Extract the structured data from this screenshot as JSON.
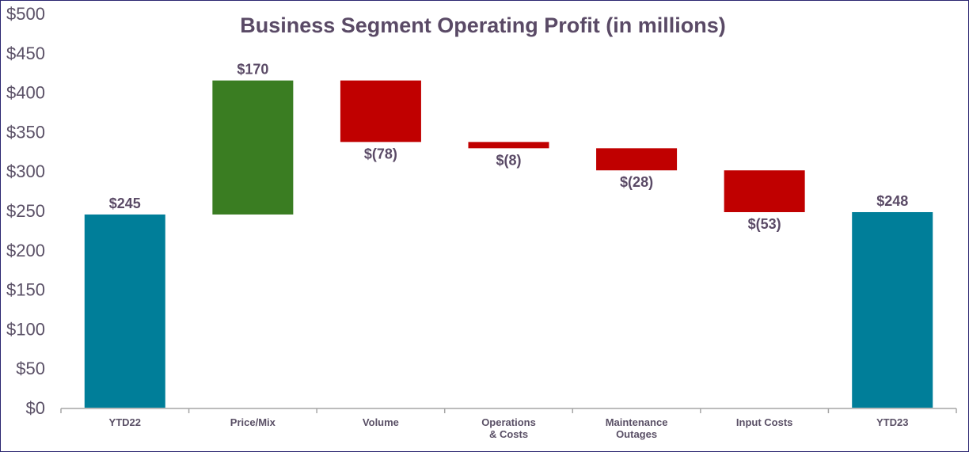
{
  "chart_data": {
    "type": "waterfall",
    "title": "Business Segment Operating Profit (in millions)",
    "categories": [
      "YTD22",
      "Price/Mix",
      "Volume",
      "Operations\n& Costs",
      "Maintenance\nOutages",
      "Input Costs",
      "YTD23"
    ],
    "values": [
      245,
      170,
      -78,
      -8,
      -28,
      -53,
      248
    ],
    "kinds": [
      "total",
      "delta",
      "delta",
      "delta",
      "delta",
      "delta",
      "total"
    ],
    "data_labels": [
      "$245",
      "$170",
      "$(78)",
      "$(8)",
      "$(28)",
      "$(53)",
      "$248"
    ],
    "yticks": [
      "$0",
      "$50",
      "$100",
      "$150",
      "$200",
      "$250",
      "$300",
      "$350",
      "$400",
      "$450",
      "$500"
    ],
    "ylim": [
      0,
      500
    ],
    "grid": false,
    "colors": {
      "total": "#007e99",
      "increase": "#3a7d22",
      "decrease": "#c00000",
      "text": "#5a4a66",
      "axis": "#a6a6a6",
      "border": "#2a2570"
    }
  }
}
